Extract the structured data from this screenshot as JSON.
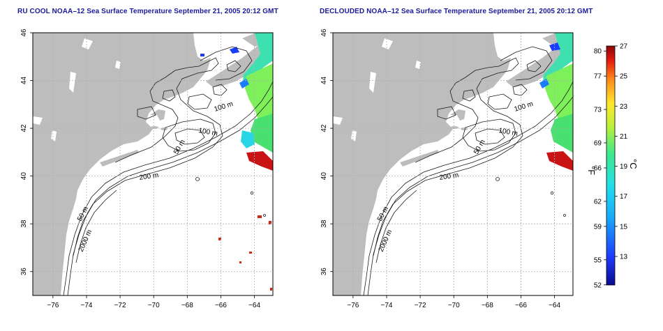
{
  "left_panel": {
    "title": "RU COOL NOAA–12 Sea Surface Temperature September 21, 2005 20:12 GMT",
    "contour_labels": [
      "100 m",
      "100 m",
      "50 m",
      "200 m",
      "50 m",
      "2000 m"
    ]
  },
  "right_panel": {
    "title": "DECLOUDED NOAA–12 Sea Surface Temperature September 21, 2005 20:12 GMT",
    "contour_labels": [
      "100 m",
      "100 m",
      "50 m",
      "200 m",
      "50 m",
      "2000 m"
    ]
  },
  "axes": {
    "x_ticks": [
      "−76",
      "−74",
      "−72",
      "−70",
      "−68",
      "−66",
      "−64"
    ],
    "y_ticks": [
      "36",
      "38",
      "40",
      "42",
      "44",
      "46"
    ],
    "x_range": [
      -77.2,
      -62.9
    ],
    "y_range": [
      35.0,
      46.0
    ]
  },
  "colorbar": {
    "fahrenheit_ticks": [
      "80",
      "77",
      "73",
      "69",
      "66",
      "62",
      "59",
      "55",
      "52"
    ],
    "celsius_ticks": [
      "27",
      "25",
      "23",
      "21",
      "19",
      "17",
      "15",
      "13"
    ],
    "fahrenheit_unit": "°F",
    "celsius_unit": "°C",
    "celsius_range": [
      11.1,
      27.0
    ]
  },
  "colors": {
    "land": "#bdbdbd",
    "ocean": "#ffffff",
    "grid": "#b0b0b0",
    "title": "#1a1a9c",
    "warm": "#c81414",
    "cool": "#1a3cff"
  }
}
